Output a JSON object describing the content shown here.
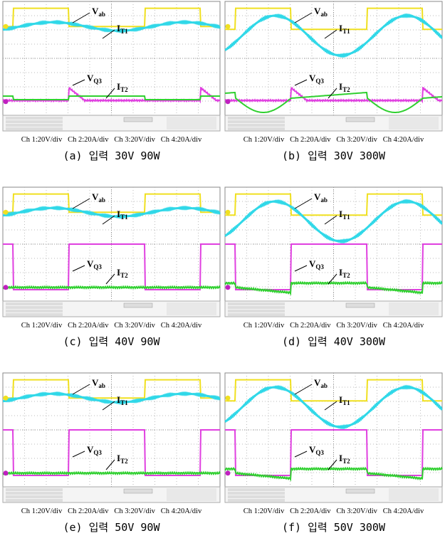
{
  "panels": [
    {
      "caption": "(a) 입력 30V 90W",
      "channels": "Ch 1:20V/div   Ch 2:20A/div   Ch 3:20V/div   Ch 4:20A/div",
      "annotations": [
        {
          "main": "V",
          "sub": "ab"
        },
        {
          "main": "I",
          "sub": "T1"
        },
        {
          "main": "V",
          "sub": "Q3"
        },
        {
          "main": "I",
          "sub": "T2"
        }
      ]
    },
    {
      "caption": "(b) 입력 30V 300W",
      "channels": "Ch 1:20V/div   Ch 2:20A/div   Ch 3:20V/div   Ch 4:20A/div",
      "annotations": [
        {
          "main": "V",
          "sub": "ab"
        },
        {
          "main": "I",
          "sub": "T1"
        },
        {
          "main": "V",
          "sub": "Q3"
        },
        {
          "main": "I",
          "sub": "T2"
        }
      ]
    },
    {
      "caption": "(c) 입력 40V 90W",
      "channels": "Ch 1:20V/div   Ch 2:20A/div   Ch 3:20V/div   Ch 4:20A/div",
      "annotations": [
        {
          "main": "V",
          "sub": "ab"
        },
        {
          "main": "I",
          "sub": "T1"
        },
        {
          "main": "V",
          "sub": "Q3"
        },
        {
          "main": "I",
          "sub": "T2"
        }
      ]
    },
    {
      "caption": "(d) 입력 40V 300W",
      "channels": "Ch 1:20V/div   Ch 2:20A/div   Ch 3:20V/div   Ch 4:20A/div",
      "annotations": [
        {
          "main": "V",
          "sub": "ab"
        },
        {
          "main": "I",
          "sub": "T1"
        },
        {
          "main": "V",
          "sub": "Q3"
        },
        {
          "main": "I",
          "sub": "T2"
        }
      ]
    },
    {
      "caption": "(e) 입력 50V 90W",
      "channels": "Ch 1:20V/div   Ch 2:20A/div   Ch 3:20V/div   Ch 4:20A/div",
      "annotations": [
        {
          "main": "V",
          "sub": "ab"
        },
        {
          "main": "I",
          "sub": "T1"
        },
        {
          "main": "V",
          "sub": "Q3"
        },
        {
          "main": "I",
          "sub": "T2"
        }
      ]
    },
    {
      "caption": "(f) 입력 50V 300W",
      "channels": "Ch 1:20V/div   Ch 2:20A/div   Ch 3:20V/div   Ch 4:20A/div",
      "annotations": [
        {
          "main": "V",
          "sub": "ab"
        },
        {
          "main": "I",
          "sub": "T1"
        },
        {
          "main": "V",
          "sub": "Q3"
        },
        {
          "main": "I",
          "sub": "T2"
        }
      ]
    }
  ]
}
